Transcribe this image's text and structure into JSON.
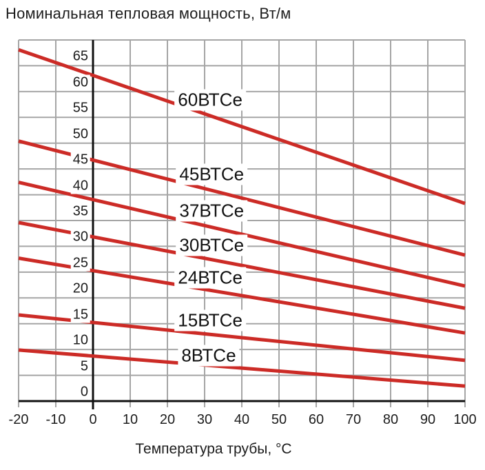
{
  "chart_data": {
    "type": "line",
    "title": "Номинальная тепловая мощность, Вт/м",
    "xlabel": "Температура трубы, °C",
    "ylabel": "",
    "xlim": [
      -20,
      100
    ],
    "ylim": [
      0,
      70
    ],
    "x_ticks": [
      -20,
      -10,
      0,
      10,
      20,
      30,
      40,
      50,
      60,
      70,
      80,
      90,
      100
    ],
    "y_ticks": [
      0,
      5,
      10,
      15,
      20,
      25,
      30,
      35,
      40,
      45,
      50,
      55,
      60,
      65
    ],
    "grid": true,
    "legend_position": "inline-labels",
    "series": [
      {
        "name": "60ВТСе",
        "points": [
          [
            -20,
            68.1
          ],
          [
            100,
            38.3
          ]
        ],
        "label_pos": [
          31.5,
          58.4
        ]
      },
      {
        "name": "45ВТСе",
        "points": [
          [
            -20,
            50.4
          ],
          [
            100,
            28.3
          ]
        ],
        "label_pos": [
          31.9,
          44.0
        ]
      },
      {
        "name": "37ВТСе",
        "points": [
          [
            -20,
            42.4
          ],
          [
            100,
            22.3
          ]
        ],
        "label_pos": [
          31.9,
          36.9
        ]
      },
      {
        "name": "30ВТСе",
        "points": [
          [
            -20,
            34.6
          ],
          [
            100,
            18.0
          ]
        ],
        "label_pos": [
          31.9,
          30.2
        ]
      },
      {
        "name": "24ВТСе",
        "points": [
          [
            -20,
            27.7
          ],
          [
            100,
            13.2
          ]
        ],
        "label_pos": [
          31.5,
          23.9
        ]
      },
      {
        "name": "15ВТСе",
        "points": [
          [
            -20,
            16.7
          ],
          [
            100,
            7.9
          ]
        ],
        "label_pos": [
          31.5,
          15.6
        ]
      },
      {
        "name": "8ВТСе",
        "points": [
          [
            -20,
            9.9
          ],
          [
            100,
            2.9
          ]
        ],
        "label_pos": [
          31.1,
          8.8
        ]
      }
    ],
    "colors": {
      "line": "#cc2b26",
      "grid": "#a5a5a5",
      "axis": "#111111",
      "text": "#1c1c1c"
    }
  }
}
